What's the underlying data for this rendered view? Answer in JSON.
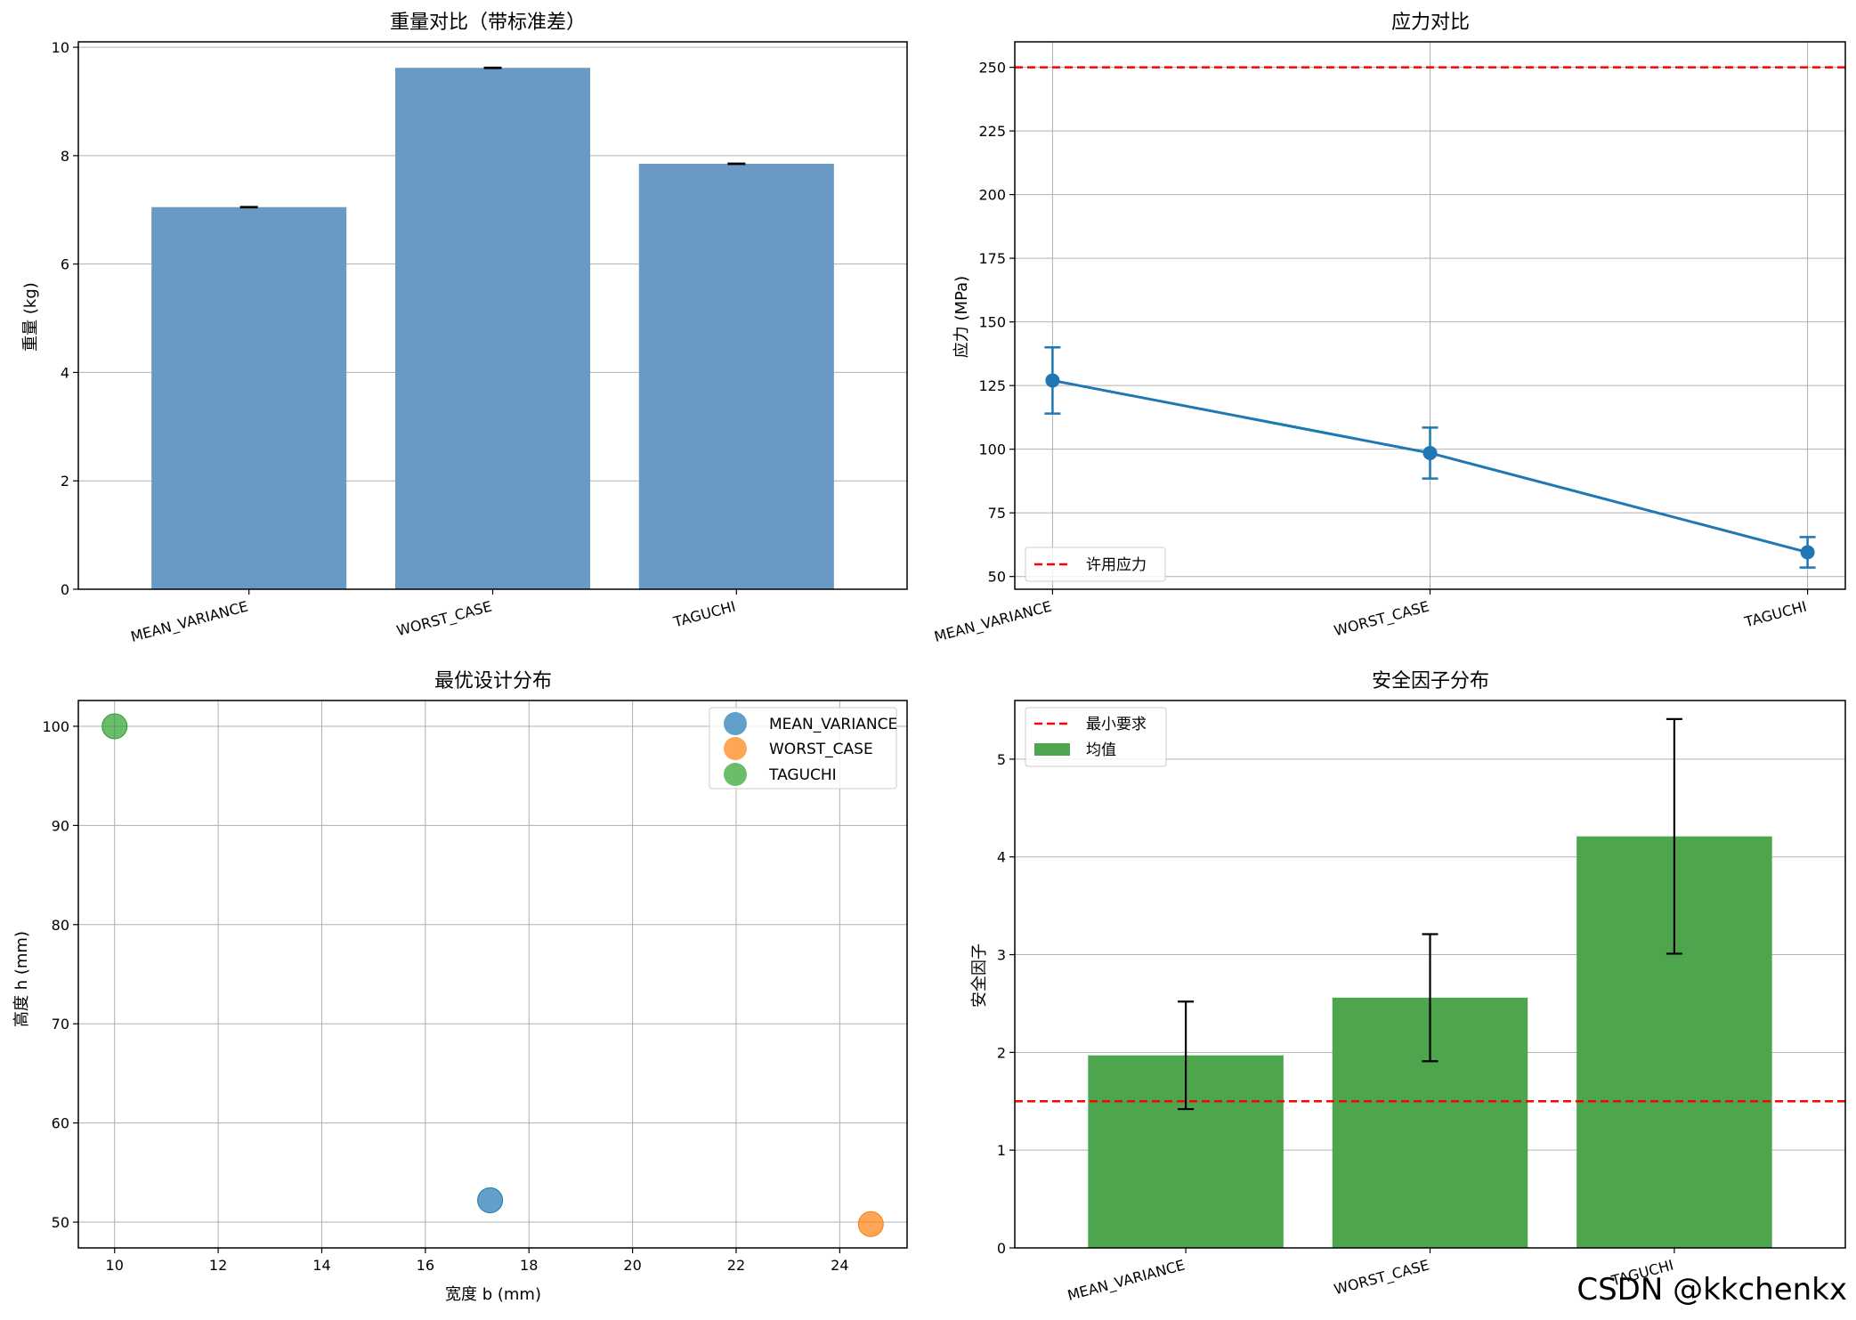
{
  "chart_data": [
    {
      "type": "bar",
      "title": "重量对比（带标准差）",
      "xlabel": "",
      "ylabel": "重量 (kg)",
      "categories": [
        "MEAN_VARIANCE",
        "WORST_CASE",
        "TAGUCHI"
      ],
      "values": [
        7.05,
        9.62,
        7.85
      ],
      "errors": [
        0.01,
        0.01,
        0.01
      ],
      "ylim": [
        0,
        10.1
      ],
      "yticks": [
        0,
        2,
        4,
        6,
        8,
        10
      ],
      "grid": "y",
      "bar_color": "#6a9ac4"
    },
    {
      "type": "line",
      "title": "应力对比",
      "xlabel": "",
      "ylabel": "应力 (MPa)",
      "categories": [
        "MEAN_VARIANCE",
        "WORST_CASE",
        "TAGUCHI"
      ],
      "series": [
        {
          "values": [
            127,
            98.5,
            59.5
          ],
          "errors": [
            13,
            10,
            6
          ],
          "color": "#1f77b4"
        }
      ],
      "reference_line": {
        "label": "许用应力",
        "value": 250,
        "color": "#ff0000",
        "style": "dashed"
      },
      "ylim": [
        45,
        260
      ],
      "yticks": [
        50,
        75,
        100,
        125,
        150,
        175,
        200,
        225,
        250
      ],
      "grid": "both",
      "legend": "bottom-left"
    },
    {
      "type": "scatter",
      "title": "最优设计分布",
      "xlabel": "宽度 b (mm)",
      "ylabel": "高度 h (mm)",
      "series": [
        {
          "name": "MEAN_VARIANCE",
          "x": 17.25,
          "y": 52.2,
          "color": "#1f77b4"
        },
        {
          "name": "WORST_CASE",
          "x": 24.6,
          "y": 49.8,
          "color": "#ff7f0e"
        },
        {
          "name": "TAGUCHI",
          "x": 10,
          "y": 100,
          "color": "#2ca02c"
        }
      ],
      "xlim": [
        9.3,
        25.3
      ],
      "ylim": [
        47.4,
        102.6
      ],
      "xticks": [
        10,
        12,
        14,
        16,
        18,
        20,
        22,
        24
      ],
      "yticks": [
        50,
        60,
        70,
        80,
        90,
        100
      ],
      "grid": "both",
      "legend": "top-right"
    },
    {
      "type": "bar",
      "title": "安全因子分布",
      "xlabel": "",
      "ylabel": "安全因子",
      "categories": [
        "MEAN_VARIANCE",
        "WORST_CASE",
        "TAGUCHI"
      ],
      "series": [
        {
          "name": "均值",
          "values": [
            1.97,
            2.56,
            4.21
          ],
          "errors": [
            0.55,
            0.65,
            1.2
          ],
          "color": "#4da64d"
        }
      ],
      "reference_line": {
        "label": "最小要求",
        "value": 1.5,
        "color": "#ff0000",
        "style": "dashed"
      },
      "ylim": [
        0,
        5.6
      ],
      "yticks": [
        0,
        1,
        2,
        3,
        4,
        5
      ],
      "grid": "y",
      "legend": "top-left"
    }
  ],
  "watermark": "CSDN @kkchenkx"
}
